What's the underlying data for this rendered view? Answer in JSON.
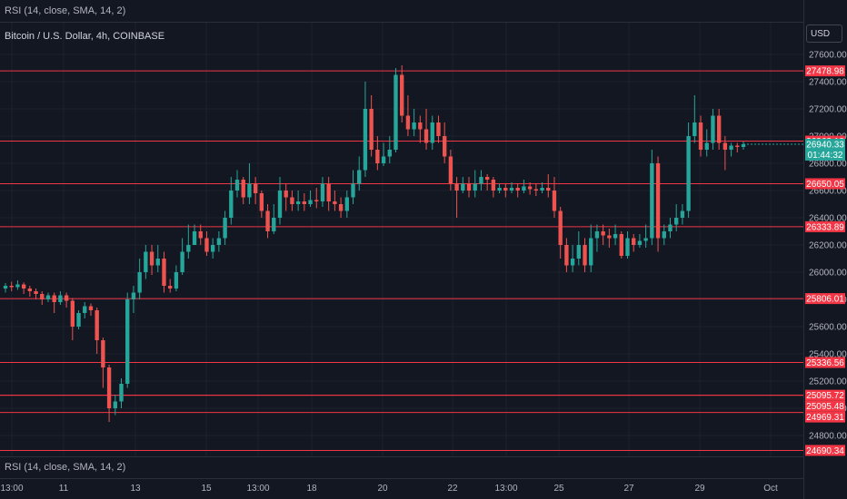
{
  "header": {
    "indicator_top": "RSI (14, close, SMA, 14, 2)",
    "symbol_title": "Bitcoin / U.S. Dollar, 4h, COINBASE"
  },
  "footer": {
    "indicator_bottom": "RSI (14, close, SMA, 14, 2)"
  },
  "axis": {
    "currency_label": "USD"
  },
  "chart_data": {
    "type": "candlestick",
    "colors": {
      "up": "#26a69a",
      "down": "#ef5350",
      "background": "#131722",
      "grid": "#1e222d",
      "level_line": "#f23645",
      "text": "#b2b5be"
    },
    "y_ticks": [
      24800,
      25000,
      25200,
      25400,
      25600,
      25800,
      26000,
      26200,
      26400,
      26600,
      26800,
      27000,
      27200,
      27400,
      27600
    ],
    "y_tick_labels": [
      "24800.00",
      "25000.00",
      "25200.00",
      "25400.00",
      "25600.00",
      "25800.00",
      "26000.00",
      "26200.00",
      "26400.00",
      "26600.00",
      "26800.00",
      "27000.00",
      "27200.00",
      "27400.00",
      "27600.00"
    ],
    "x_ticks": [
      {
        "label": "13:00",
        "x": 13
      },
      {
        "label": "11",
        "x": 70
      },
      {
        "label": "13",
        "x": 149
      },
      {
        "label": "15",
        "x": 227
      },
      {
        "label": "13:00",
        "x": 284
      },
      {
        "label": "18",
        "x": 343
      },
      {
        "label": "20",
        "x": 421
      },
      {
        "label": "22",
        "x": 498
      },
      {
        "label": "13:00",
        "x": 557
      },
      {
        "label": "25",
        "x": 615
      },
      {
        "label": "27",
        "x": 692
      },
      {
        "label": "29",
        "x": 770
      },
      {
        "label": "Oct",
        "x": 848
      }
    ],
    "levels": [
      {
        "label": "27478.98",
        "value": 27478.98
      },
      {
        "label": "26963.12",
        "value": 26963.12
      },
      {
        "label": "26650.05",
        "value": 26650.05
      },
      {
        "label": "26333.89",
        "value": 26333.89
      },
      {
        "label": "25806.01",
        "value": 25806.01
      },
      {
        "label": "25336.56",
        "value": 25336.56
      },
      {
        "label": "25095.72",
        "value": 25095.72
      },
      {
        "label": "25095.48",
        "value": 25095.48
      },
      {
        "label": "24969.31",
        "value": 24969.31
      },
      {
        "label": "24690.34",
        "value": 24690.34
      }
    ],
    "current_price": {
      "label": "26940.33",
      "value": 26940.33,
      "countdown": "01:44:32"
    },
    "candles": [
      [
        25880,
        25900,
        25850,
        25920
      ],
      [
        25900,
        25890,
        25860,
        25930
      ],
      [
        25890,
        25910,
        25870,
        25940
      ],
      [
        25910,
        25880,
        25840,
        25925
      ],
      [
        25880,
        25860,
        25820,
        25900
      ],
      [
        25860,
        25840,
        25800,
        25880
      ],
      [
        25840,
        25800,
        25760,
        25860
      ],
      [
        25800,
        25830,
        25780,
        25850
      ],
      [
        25830,
        25780,
        25700,
        25850
      ],
      [
        25780,
        25830,
        25760,
        25860
      ],
      [
        25830,
        25790,
        25740,
        25850
      ],
      [
        25790,
        25600,
        25500,
        25810
      ],
      [
        25600,
        25700,
        25580,
        25720
      ],
      [
        25700,
        25750,
        25660,
        25780
      ],
      [
        25750,
        25720,
        25680,
        25770
      ],
      [
        25720,
        25500,
        25400,
        25740
      ],
      [
        25500,
        25300,
        25150,
        25520
      ],
      [
        25300,
        25000,
        24900,
        25320
      ],
      [
        25000,
        25050,
        24950,
        25100
      ],
      [
        25050,
        25180,
        25000,
        25220
      ],
      [
        25180,
        25800,
        25150,
        25850
      ],
      [
        25800,
        25850,
        25700,
        25900
      ],
      [
        25850,
        26000,
        25800,
        26100
      ],
      [
        26000,
        26150,
        25950,
        26200
      ],
      [
        26150,
        26050,
        25980,
        26200
      ],
      [
        26050,
        26100,
        26000,
        26200
      ],
      [
        26100,
        25900,
        25850,
        26150
      ],
      [
        25900,
        25880,
        25850,
        25950
      ],
      [
        25880,
        26000,
        25860,
        26050
      ],
      [
        26000,
        26150,
        25980,
        26250
      ],
      [
        26150,
        26200,
        26100,
        26350
      ],
      [
        26200,
        26300,
        26200,
        26350
      ],
      [
        26300,
        26250,
        26200,
        26350
      ],
      [
        26250,
        26150,
        26120,
        26300
      ],
      [
        26150,
        26200,
        26100,
        26250
      ],
      [
        26200,
        26250,
        26150,
        26300
      ],
      [
        26250,
        26400,
        26200,
        26450
      ],
      [
        26400,
        26600,
        26350,
        26700
      ],
      [
        26600,
        26680,
        26550,
        26750
      ],
      [
        26680,
        26550,
        26500,
        26700
      ],
      [
        26550,
        26650,
        26500,
        26800
      ],
      [
        26650,
        26580,
        26500,
        26700
      ],
      [
        26580,
        26450,
        26400,
        26600
      ],
      [
        26450,
        26300,
        26250,
        26500
      ],
      [
        26300,
        26400,
        26280,
        26500
      ],
      [
        26400,
        26600,
        26350,
        26700
      ],
      [
        26600,
        26550,
        26450,
        26650
      ],
      [
        26550,
        26500,
        26450,
        26600
      ],
      [
        26500,
        26520,
        26450,
        26600
      ],
      [
        26520,
        26500,
        26450,
        26580
      ],
      [
        26500,
        26530,
        26480,
        26600
      ],
      [
        26530,
        26520,
        26470,
        26620
      ],
      [
        26520,
        26650,
        26480,
        26700
      ],
      [
        26650,
        26520,
        26450,
        26700
      ],
      [
        26520,
        26500,
        26450,
        26600
      ],
      [
        26500,
        26450,
        26400,
        26550
      ],
      [
        26450,
        26550,
        26400,
        26600
      ],
      [
        26550,
        26650,
        26500,
        26750
      ],
      [
        26650,
        26750,
        26600,
        26850
      ],
      [
        26750,
        27200,
        26700,
        27400
      ],
      [
        27200,
        26900,
        26850,
        27300
      ],
      [
        26900,
        26800,
        26750,
        27000
      ],
      [
        26800,
        26850,
        26780,
        26950
      ],
      [
        26850,
        26900,
        26800,
        27000
      ],
      [
        26900,
        27450,
        26880,
        27500
      ],
      [
        27450,
        27150,
        27100,
        27520
      ],
      [
        27150,
        27050,
        27000,
        27300
      ],
      [
        27050,
        27100,
        27000,
        27200
      ],
      [
        27100,
        27050,
        26950,
        27150
      ],
      [
        27050,
        26950,
        26900,
        27200
      ],
      [
        26950,
        27100,
        26900,
        27150
      ],
      [
        27100,
        27000,
        26950,
        27150
      ],
      [
        27000,
        26850,
        26800,
        27100
      ],
      [
        26850,
        26650,
        26600,
        26900
      ],
      [
        26650,
        26600,
        26400,
        26700
      ],
      [
        26600,
        26650,
        26580,
        26700
      ],
      [
        26650,
        26600,
        26550,
        26700
      ],
      [
        26600,
        26650,
        26550,
        26750
      ],
      [
        26650,
        26700,
        26600,
        26750
      ],
      [
        26700,
        26680,
        26600,
        26720
      ],
      [
        26680,
        26600,
        26550,
        26700
      ],
      [
        26600,
        26620,
        26580,
        26650
      ],
      [
        26620,
        26600,
        26550,
        26650
      ],
      [
        26600,
        26620,
        26580,
        26660
      ],
      [
        26620,
        26600,
        26550,
        26650
      ],
      [
        26600,
        26630,
        26580,
        26680
      ],
      [
        26630,
        26610,
        26570,
        26660
      ],
      [
        26610,
        26600,
        26560,
        26650
      ],
      [
        26600,
        26620,
        26580,
        26660
      ],
      [
        26620,
        26600,
        26550,
        26720
      ],
      [
        26600,
        26450,
        26400,
        26700
      ],
      [
        26450,
        26200,
        26100,
        26480
      ],
      [
        26200,
        26050,
        26000,
        26250
      ],
      [
        26050,
        26100,
        26000,
        26200
      ],
      [
        26100,
        26200,
        26050,
        26300
      ],
      [
        26200,
        26050,
        26000,
        26250
      ],
      [
        26050,
        26250,
        26000,
        26350
      ],
      [
        26250,
        26300,
        26150,
        26350
      ],
      [
        26300,
        26270,
        26200,
        26350
      ],
      [
        26270,
        26250,
        26180,
        26320
      ],
      [
        26250,
        26280,
        26200,
        26350
      ],
      [
        26280,
        26120,
        26100,
        26300
      ],
      [
        26120,
        26250,
        26100,
        26300
      ],
      [
        26250,
        26200,
        26150,
        26280
      ],
      [
        26200,
        26230,
        26180,
        26280
      ],
      [
        26230,
        26250,
        26180,
        26350
      ],
      [
        26250,
        26800,
        26200,
        26900
      ],
      [
        26800,
        26250,
        26150,
        26850
      ],
      [
        26250,
        26300,
        26200,
        26350
      ],
      [
        26300,
        26350,
        26250,
        26400
      ],
      [
        26350,
        26400,
        26300,
        26500
      ],
      [
        26400,
        26450,
        26350,
        26500
      ],
      [
        26450,
        27000,
        26400,
        27100
      ],
      [
        27000,
        27100,
        26950,
        27300
      ],
      [
        27100,
        26900,
        26850,
        27150
      ],
      [
        26900,
        26950,
        26850,
        27050
      ],
      [
        26950,
        27150,
        26900,
        27200
      ],
      [
        27150,
        26950,
        26900,
        27200
      ],
      [
        26950,
        26900,
        26750,
        27000
      ],
      [
        26900,
        26930,
        26850,
        26950
      ],
      [
        26930,
        26920,
        26880,
        26950
      ],
      [
        26920,
        26940,
        26900,
        26960
      ]
    ]
  }
}
